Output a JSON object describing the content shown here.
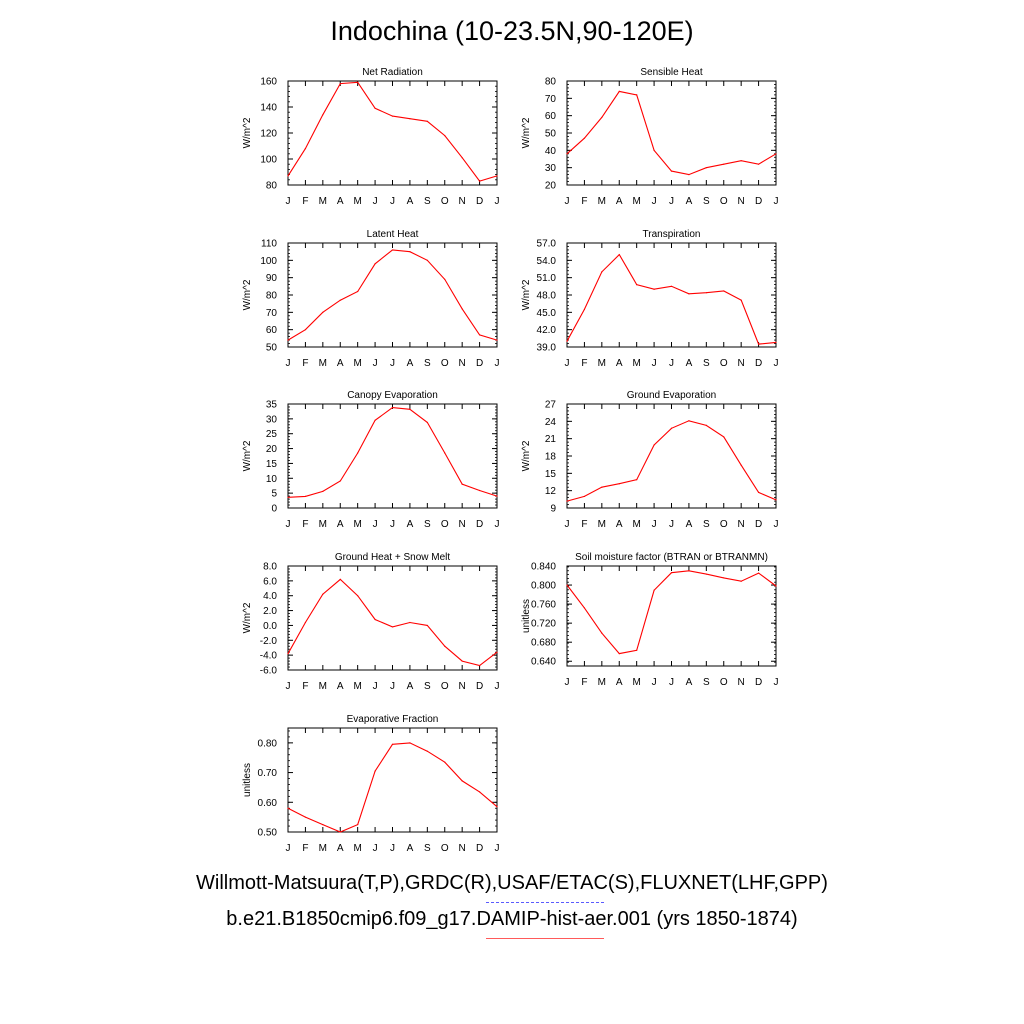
{
  "title": "Indochina (10-23.5N,90-120E)",
  "legend": {
    "obs_label": "Willmott-Matsuura(T,P),GRDC(R),USAF/ETAC(S),FLUXNET(LHF,GPP)",
    "model_label": "b.e21.B1850cmip6.f09_g17.DAMIP-hist-aer.001 (yrs 1850-1874)",
    "obs_color": "#0000ff",
    "model_color": "#ff0000"
  },
  "chart_data": [
    {
      "type": "line",
      "title": "Net Radiation",
      "ylabel": "W/m^2",
      "categories": [
        "J",
        "F",
        "M",
        "A",
        "M",
        "J",
        "J",
        "A",
        "S",
        "O",
        "N",
        "D",
        "J"
      ],
      "ylim": [
        80,
        160
      ],
      "yticks": [
        80,
        100,
        120,
        140,
        160
      ],
      "tick_decimals": 0,
      "series": [
        {
          "color": "#ff0000",
          "values": [
            87,
            108,
            134,
            158,
            159,
            139,
            133,
            131,
            129,
            118,
            101,
            83,
            87
          ]
        }
      ]
    },
    {
      "type": "line",
      "title": "Sensible Heat",
      "ylabel": "W/m^2",
      "categories": [
        "J",
        "F",
        "M",
        "A",
        "M",
        "J",
        "J",
        "A",
        "S",
        "O",
        "N",
        "D",
        "J"
      ],
      "ylim": [
        20,
        80
      ],
      "yticks": [
        20,
        30,
        40,
        50,
        60,
        70,
        80
      ],
      "tick_decimals": 0,
      "series": [
        {
          "color": "#ff0000",
          "values": [
            38,
            47,
            59,
            74,
            72,
            40,
            28,
            26,
            30,
            32,
            34,
            32,
            38
          ]
        }
      ]
    },
    {
      "type": "line",
      "title": "Latent Heat",
      "ylabel": "W/m^2",
      "categories": [
        "J",
        "F",
        "M",
        "A",
        "M",
        "J",
        "J",
        "A",
        "S",
        "O",
        "N",
        "D",
        "J"
      ],
      "ylim": [
        50,
        110
      ],
      "yticks": [
        50,
        60,
        70,
        80,
        90,
        100,
        110
      ],
      "tick_decimals": 0,
      "series": [
        {
          "color": "#ff0000",
          "values": [
            54,
            60,
            70,
            77,
            82,
            98,
            106,
            105,
            100,
            89,
            72,
            57,
            54
          ]
        }
      ]
    },
    {
      "type": "line",
      "title": "Transpiration",
      "ylabel": "W/m^2",
      "categories": [
        "J",
        "F",
        "M",
        "A",
        "M",
        "J",
        "J",
        "A",
        "S",
        "O",
        "N",
        "D",
        "J"
      ],
      "ylim": [
        39,
        57
      ],
      "yticks": [
        39,
        42,
        45,
        48,
        51,
        54,
        57
      ],
      "tick_decimals": 1,
      "series": [
        {
          "color": "#ff0000",
          "values": [
            40.0,
            45.5,
            52.0,
            55.0,
            49.8,
            49.0,
            49.5,
            48.2,
            48.4,
            48.7,
            47.1,
            39.5,
            39.8
          ]
        }
      ]
    },
    {
      "type": "line",
      "title": "Canopy Evaporation",
      "ylabel": "W/m^2",
      "categories": [
        "J",
        "F",
        "M",
        "A",
        "M",
        "J",
        "J",
        "A",
        "S",
        "O",
        "N",
        "D",
        "J"
      ],
      "ylim": [
        0,
        35
      ],
      "yticks": [
        0,
        5,
        10,
        15,
        20,
        25,
        30,
        35
      ],
      "tick_decimals": 0,
      "series": [
        {
          "color": "#ff0000",
          "values": [
            3.6,
            3.9,
            5.6,
            9.1,
            18.5,
            29.5,
            33.8,
            33.2,
            28.8,
            18.5,
            8.0,
            5.9,
            4.0
          ]
        }
      ]
    },
    {
      "type": "line",
      "title": "Ground Evaporation",
      "ylabel": "W/m^2",
      "categories": [
        "J",
        "F",
        "M",
        "A",
        "M",
        "J",
        "J",
        "A",
        "S",
        "O",
        "N",
        "D",
        "J"
      ],
      "ylim": [
        9,
        27
      ],
      "yticks": [
        9,
        12,
        15,
        18,
        21,
        24,
        27
      ],
      "tick_decimals": 0,
      "series": [
        {
          "color": "#ff0000",
          "values": [
            10.2,
            11.0,
            12.6,
            13.2,
            13.9,
            19.9,
            22.8,
            24.1,
            23.3,
            21.3,
            16.4,
            11.7,
            10.4
          ]
        }
      ]
    },
    {
      "type": "line",
      "title": "Ground Heat + Snow Melt",
      "ylabel": "W/m^2",
      "categories": [
        "J",
        "F",
        "M",
        "A",
        "M",
        "J",
        "J",
        "A",
        "S",
        "O",
        "N",
        "D",
        "J"
      ],
      "ylim": [
        -6,
        8
      ],
      "yticks": [
        -6,
        -4,
        -2,
        0,
        2,
        4,
        6,
        8
      ],
      "tick_decimals": 1,
      "series": [
        {
          "color": "#ff0000",
          "values": [
            -3.8,
            0.4,
            4.2,
            6.2,
            4.0,
            0.8,
            -0.2,
            0.4,
            0.0,
            -2.8,
            -4.8,
            -5.4,
            -3.6
          ]
        }
      ]
    },
    {
      "type": "line",
      "title": "Soil moisture factor (BTRAN or BTRANMN)",
      "ylabel": "unitless",
      "categories": [
        "J",
        "F",
        "M",
        "A",
        "M",
        "J",
        "J",
        "A",
        "S",
        "O",
        "N",
        "D",
        "J"
      ],
      "ylim": [
        0.63,
        0.84
      ],
      "yticks": [
        0.64,
        0.68,
        0.72,
        0.76,
        0.8,
        0.84
      ],
      "tick_decimals": 3,
      "series": [
        {
          "color": "#ff0000",
          "values": [
            0.8,
            0.752,
            0.699,
            0.656,
            0.663,
            0.789,
            0.826,
            0.83,
            0.823,
            0.815,
            0.808,
            0.825,
            0.798
          ]
        }
      ]
    },
    {
      "type": "line",
      "title": "Evaporative Fraction",
      "ylabel": "unitless",
      "categories": [
        "J",
        "F",
        "M",
        "A",
        "M",
        "J",
        "J",
        "A",
        "S",
        "O",
        "N",
        "D",
        "J"
      ],
      "ylim": [
        0.5,
        0.85
      ],
      "yticks": [
        0.5,
        0.6,
        0.7,
        0.8
      ],
      "tick_decimals": 2,
      "series": [
        {
          "color": "#ff0000",
          "values": [
            0.58,
            0.55,
            0.525,
            0.5,
            0.525,
            0.705,
            0.795,
            0.8,
            0.772,
            0.735,
            0.672,
            0.635,
            0.585
          ]
        }
      ]
    }
  ]
}
